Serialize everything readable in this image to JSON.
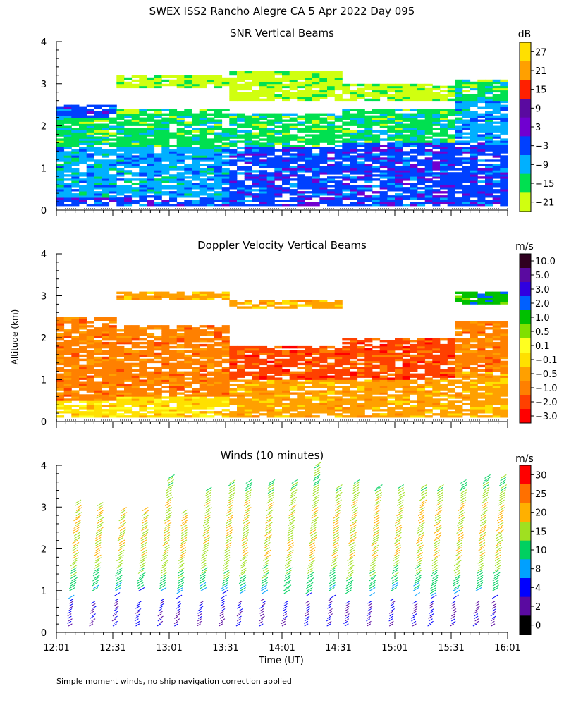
{
  "figure_title": "SWEX ISS2 Rancho Alegre CA   5 Apr 2022 Day 095",
  "ylabel": "Altitude (km)",
  "xlabel": "Time (UT)",
  "footnote": "Simple moment winds, no ship navigation correction applied",
  "chart_data": [
    {
      "type": "heatmap",
      "title": "SNR Vertical Beams",
      "unit": "dB",
      "ylim": [
        0,
        4
      ],
      "yticks": [
        "0",
        "1",
        "2",
        "3",
        "4"
      ],
      "xticks": [
        "12:01",
        "12:31",
        "13:01",
        "13:31",
        "14:01",
        "14:31",
        "15:01",
        "15:31",
        "16:01"
      ],
      "colorbar_labels": [
        "27",
        "21",
        "15",
        "9",
        "3",
        "−3",
        "−9",
        "−15",
        "−21"
      ],
      "colors": [
        "#ffe000",
        "#ffa000",
        "#ff2000",
        "#5a0aa0",
        "#7000d0",
        "#0040ff",
        "#00b0ff",
        "#00e050",
        "#d0ff10"
      ],
      "profile": [
        {
          "hour": 12.0,
          "layers": [
            {
              "from": 0.1,
              "to": 0.3,
              "level": "-3"
            },
            {
              "from": 0.3,
              "to": 1.5,
              "level": "-9"
            },
            {
              "from": 1.5,
              "to": 2.2,
              "level": "-15"
            },
            {
              "from": 2.2,
              "to": 2.5,
              "level": "-3"
            }
          ]
        },
        {
          "hour": 13.0,
          "layers": [
            {
              "from": 0.1,
              "to": 0.3,
              "level": "-3"
            },
            {
              "from": 0.3,
              "to": 1.5,
              "level": "-9"
            },
            {
              "from": 1.5,
              "to": 2.4,
              "level": "-15"
            },
            {
              "from": 2.9,
              "to": 3.2,
              "level": "-21"
            }
          ]
        },
        {
          "hour": 14.0,
          "layers": [
            {
              "from": 0.1,
              "to": 1.5,
              "level": "-3"
            },
            {
              "from": 1.5,
              "to": 2.3,
              "level": "-15"
            },
            {
              "from": 2.6,
              "to": 3.3,
              "level": "-21"
            }
          ]
        },
        {
          "hour": 15.0,
          "layers": [
            {
              "from": 0.1,
              "to": 1.6,
              "level": "-3"
            },
            {
              "from": 1.6,
              "to": 2.4,
              "level": "-15"
            },
            {
              "from": 2.6,
              "to": 3.0,
              "level": "-21"
            }
          ]
        },
        {
          "hour": 16.0,
          "layers": [
            {
              "from": 0.1,
              "to": 1.6,
              "level": "-3"
            },
            {
              "from": 1.6,
              "to": 2.6,
              "level": "-9"
            },
            {
              "from": 2.6,
              "to": 3.1,
              "level": "-15"
            }
          ]
        }
      ]
    },
    {
      "type": "heatmap",
      "title": "Doppler Velocity Vertical Beams",
      "unit": "m/s",
      "ylim": [
        0,
        4
      ],
      "yticks": [
        "0",
        "1",
        "2",
        "3",
        "4"
      ],
      "xticks": [
        "12:01",
        "12:31",
        "13:01",
        "13:31",
        "14:01",
        "14:31",
        "15:01",
        "15:31",
        "16:01"
      ],
      "colorbar_labels": [
        "10.0",
        "5.0",
        "3.0",
        "2.0",
        "1.0",
        "0.5",
        "0.1",
        "−0.1",
        "−0.5",
        "−1.0",
        "−2.0",
        "−3.0"
      ],
      "colors": [
        "#300020",
        "#5a0aa0",
        "#3000e0",
        "#0060ff",
        "#00c000",
        "#80e000",
        "#ffff20",
        "#ffe000",
        "#ffa000",
        "#ff8000",
        "#ff4000",
        "#ff0000"
      ],
      "profile": [
        {
          "hour": 12.0,
          "layers": [
            {
              "from": 0.1,
              "to": 0.5,
              "level": "-0.1"
            },
            {
              "from": 0.5,
              "to": 2.5,
              "level": "-1.0"
            }
          ]
        },
        {
          "hour": 13.0,
          "layers": [
            {
              "from": 0.1,
              "to": 0.6,
              "level": "-0.1"
            },
            {
              "from": 0.6,
              "to": 2.3,
              "level": "-1.0"
            },
            {
              "from": 2.9,
              "to": 3.1,
              "level": "-0.5"
            }
          ]
        },
        {
          "hour": 14.0,
          "layers": [
            {
              "from": 0.1,
              "to": 1.0,
              "level": "-0.5"
            },
            {
              "from": 1.0,
              "to": 1.8,
              "level": "-2.0"
            },
            {
              "from": 2.7,
              "to": 2.9,
              "level": "-0.5"
            }
          ]
        },
        {
          "hour": 15.0,
          "layers": [
            {
              "from": 0.1,
              "to": 1.0,
              "level": "-0.5"
            },
            {
              "from": 1.0,
              "to": 2.0,
              "level": "-2.0"
            }
          ]
        },
        {
          "hour": 16.0,
          "layers": [
            {
              "from": 0.1,
              "to": 1.2,
              "level": "-0.5"
            },
            {
              "from": 1.2,
              "to": 2.4,
              "level": "-1.0"
            },
            {
              "from": 2.8,
              "to": 3.1,
              "level": "1.0"
            }
          ]
        }
      ]
    },
    {
      "type": "scatter",
      "title": "Winds (10 minutes)",
      "unit": "m/s",
      "ylim": [
        0,
        4
      ],
      "yticks": [
        "0",
        "1",
        "2",
        "3",
        "4"
      ],
      "xticks": [
        "12:01",
        "12:31",
        "13:01",
        "13:31",
        "14:01",
        "14:31",
        "15:01",
        "15:31",
        "16:01"
      ],
      "colorbar_labels": [
        "30",
        "25",
        "20",
        "15",
        "10",
        "8",
        "4",
        "2",
        "0"
      ],
      "colors": [
        "#ff0000",
        "#ff7000",
        "#ffb000",
        "#a0e020",
        "#00d060",
        "#00a0ff",
        "#0000ff",
        "#5a0aa0",
        "#000000"
      ],
      "profiles": [
        {
          "hour": 12.15,
          "top": 3.1
        },
        {
          "hour": 12.35,
          "top": 3.05
        },
        {
          "hour": 12.55,
          "top": 2.95
        },
        {
          "hour": 12.75,
          "top": 2.95
        },
        {
          "hour": 12.95,
          "top": 3.7
        },
        {
          "hour": 13.1,
          "top": 2.9
        },
        {
          "hour": 13.3,
          "top": 3.4
        },
        {
          "hour": 13.5,
          "top": 3.6
        },
        {
          "hour": 13.65,
          "top": 3.6
        },
        {
          "hour": 13.85,
          "top": 3.6
        },
        {
          "hour": 14.05,
          "top": 3.6
        },
        {
          "hour": 14.25,
          "top": 4.0
        },
        {
          "hour": 14.45,
          "top": 3.5
        },
        {
          "hour": 14.6,
          "top": 3.6
        },
        {
          "hour": 14.8,
          "top": 3.5
        },
        {
          "hour": 15.0,
          "top": 3.5
        },
        {
          "hour": 15.2,
          "top": 3.5
        },
        {
          "hour": 15.35,
          "top": 3.5
        },
        {
          "hour": 15.55,
          "top": 3.6
        },
        {
          "hour": 15.75,
          "top": 3.7
        },
        {
          "hour": 15.9,
          "top": 3.7
        }
      ],
      "speeds_by_altitude": [
        {
          "altitude": 0.3,
          "speed": 4
        },
        {
          "altitude": 0.7,
          "speed": 4
        },
        {
          "altitude": 1.0,
          "speed": 10
        },
        {
          "altitude": 1.4,
          "speed": 15
        },
        {
          "altitude": 1.8,
          "speed": 20
        },
        {
          "altitude": 2.2,
          "speed": 20
        },
        {
          "altitude": 2.6,
          "speed": 20
        },
        {
          "altitude": 3.0,
          "speed": 20
        },
        {
          "altitude": 3.4,
          "speed": 15
        },
        {
          "altitude": 3.8,
          "speed": 15
        }
      ]
    }
  ]
}
